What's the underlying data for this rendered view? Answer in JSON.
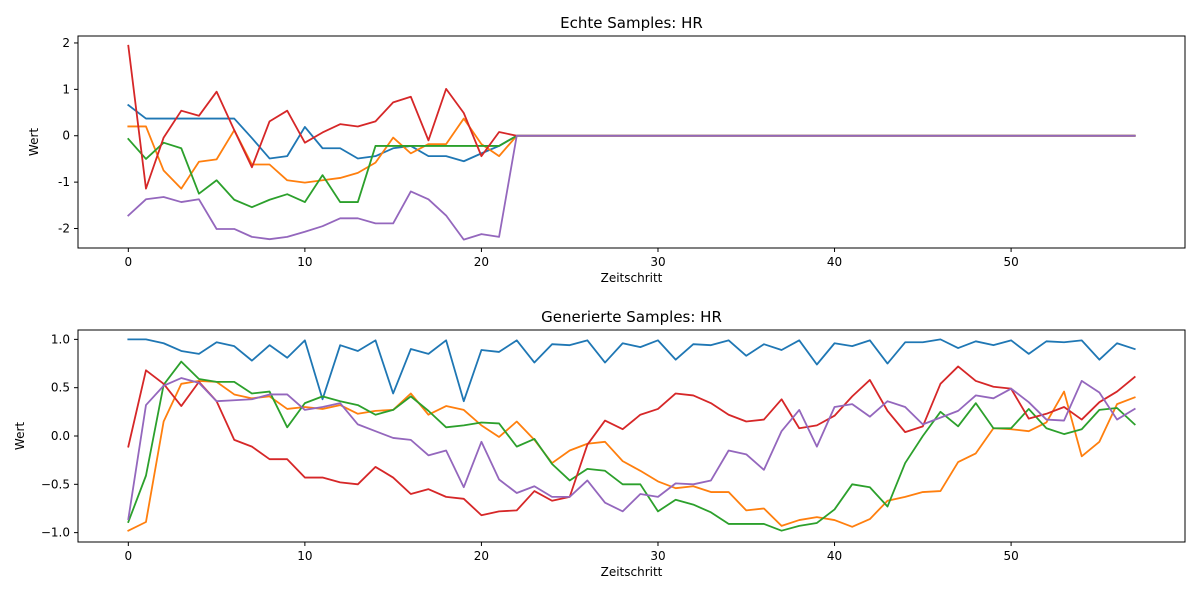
{
  "chart_data": [
    {
      "type": "line",
      "title": "Echte Samples: HR",
      "xlabel": "Zeitschritt",
      "ylabel": "Wert",
      "xlim": [
        -2.85,
        59.85
      ],
      "ylim": [
        -2.42,
        2.15
      ],
      "xticks": [
        0,
        10,
        20,
        30,
        40,
        50
      ],
      "yticks": [
        -2,
        -1,
        0,
        1,
        2
      ],
      "grid": false,
      "x": [
        0,
        1,
        2,
        3,
        4,
        5,
        6,
        7,
        8,
        9,
        10,
        11,
        12,
        13,
        14,
        15,
        16,
        17,
        18,
        19,
        20,
        21,
        22,
        23,
        24,
        25,
        26,
        27,
        28,
        29,
        30,
        31,
        32,
        33,
        34,
        35,
        36,
        37,
        38,
        39,
        40,
        41,
        42,
        43,
        44,
        45,
        46,
        47,
        48,
        49,
        50,
        51,
        52,
        53,
        54,
        55,
        56,
        57
      ],
      "series": [
        {
          "color": "#1f77b4",
          "values": [
            0.66,
            0.37,
            0.37,
            0.37,
            0.37,
            0.37,
            0.37,
            -0.05,
            -0.49,
            -0.44,
            0.19,
            -0.27,
            -0.27,
            -0.49,
            -0.44,
            -0.27,
            -0.22,
            -0.44,
            -0.44,
            -0.55,
            -0.38,
            -0.22,
            0,
            0,
            0,
            0,
            0,
            0,
            0,
            0,
            0,
            0,
            0,
            0,
            0,
            0,
            0,
            0,
            0,
            0,
            0,
            0,
            0,
            0,
            0,
            0,
            0,
            0,
            0,
            0,
            0,
            0,
            0,
            0,
            0,
            0,
            0,
            0
          ]
        },
        {
          "color": "#ff7f0e",
          "values": [
            0.2,
            0.2,
            -0.75,
            -1.14,
            -0.56,
            -0.51,
            0.12,
            -0.62,
            -0.62,
            -0.96,
            -1.01,
            -0.96,
            -0.91,
            -0.8,
            -0.58,
            -0.04,
            -0.38,
            -0.18,
            -0.18,
            0.37,
            -0.18,
            -0.44,
            0,
            0,
            0,
            0,
            0,
            0,
            0,
            0,
            0,
            0,
            0,
            0,
            0,
            0,
            0,
            0,
            0,
            0,
            0,
            0,
            0,
            0,
            0,
            0,
            0,
            0,
            0,
            0,
            0,
            0,
            0,
            0,
            0,
            0,
            0,
            0
          ]
        },
        {
          "color": "#2ca02c",
          "values": [
            -0.07,
            -0.5,
            -0.15,
            -0.27,
            -1.25,
            -0.96,
            -1.38,
            -1.54,
            -1.38,
            -1.26,
            -1.43,
            -0.85,
            -1.43,
            -1.43,
            -0.22,
            -0.22,
            -0.22,
            -0.22,
            -0.22,
            -0.22,
            -0.22,
            -0.22,
            0,
            0,
            0,
            0,
            0,
            0,
            0,
            0,
            0,
            0,
            0,
            0,
            0,
            0,
            0,
            0,
            0,
            0,
            0,
            0,
            0,
            0,
            0,
            0,
            0,
            0,
            0,
            0,
            0,
            0,
            0,
            0,
            0,
            0,
            0,
            0
          ]
        },
        {
          "color": "#d62728",
          "values": [
            1.94,
            -1.14,
            -0.04,
            0.54,
            0.43,
            0.95,
            0.12,
            -0.68,
            0.31,
            0.54,
            -0.15,
            0.07,
            0.25,
            0.2,
            0.31,
            0.72,
            0.84,
            -0.1,
            1.01,
            0.49,
            -0.44,
            0.08,
            0,
            0,
            0,
            0,
            0,
            0,
            0,
            0,
            0,
            0,
            0,
            0,
            0,
            0,
            0,
            0,
            0,
            0,
            0,
            0,
            0,
            0,
            0,
            0,
            0,
            0,
            0,
            0,
            0,
            0,
            0,
            0,
            0,
            0,
            0,
            0
          ]
        },
        {
          "color": "#9467bd",
          "values": [
            -1.72,
            -1.37,
            -1.32,
            -1.43,
            -1.37,
            -2.01,
            -2.01,
            -2.18,
            -2.23,
            -2.18,
            -2.07,
            -1.95,
            -1.78,
            -1.78,
            -1.89,
            -1.89,
            -1.2,
            -1.37,
            -1.72,
            -2.24,
            -2.12,
            -2.18,
            0,
            0,
            0,
            0,
            0,
            0,
            0,
            0,
            0,
            0,
            0,
            0,
            0,
            0,
            0,
            0,
            0,
            0,
            0,
            0,
            0,
            0,
            0,
            0,
            0,
            0,
            0,
            0,
            0,
            0,
            0,
            0,
            0,
            0,
            0,
            0
          ]
        }
      ]
    },
    {
      "type": "line",
      "title": "Generierte Samples: HR",
      "xlabel": "Zeitschritt",
      "ylabel": "Wert",
      "xlim": [
        -2.85,
        59.85
      ],
      "ylim": [
        -1.097,
        1.097
      ],
      "xticks": [
        0,
        10,
        20,
        30,
        40,
        50
      ],
      "yticks": [
        -1.0,
        -0.5,
        0.0,
        0.5,
        1.0
      ],
      "ytick_labels": [
        "−1.0",
        "−0.5",
        "0.0",
        "0.5",
        "1.0"
      ],
      "grid": false,
      "x": [
        0,
        1,
        2,
        3,
        4,
        5,
        6,
        7,
        8,
        9,
        10,
        11,
        12,
        13,
        14,
        15,
        16,
        17,
        18,
        19,
        20,
        21,
        22,
        23,
        24,
        25,
        26,
        27,
        28,
        29,
        30,
        31,
        32,
        33,
        34,
        35,
        36,
        37,
        38,
        39,
        40,
        41,
        42,
        43,
        44,
        45,
        46,
        47,
        48,
        49,
        50,
        51,
        52,
        53,
        54,
        55,
        56,
        57
      ],
      "series": [
        {
          "color": "#1f77b4",
          "values": [
            1.0,
            1.0,
            0.96,
            0.88,
            0.85,
            0.97,
            0.93,
            0.78,
            0.94,
            0.81,
            0.99,
            0.38,
            0.94,
            0.88,
            0.99,
            0.44,
            0.9,
            0.85,
            0.99,
            0.36,
            0.89,
            0.87,
            0.99,
            0.76,
            0.95,
            0.94,
            0.99,
            0.76,
            0.96,
            0.92,
            0.99,
            0.79,
            0.95,
            0.94,
            0.99,
            0.83,
            0.95,
            0.89,
            0.99,
            0.74,
            0.96,
            0.93,
            0.99,
            0.75,
            0.97,
            0.97,
            1.0,
            0.91,
            0.98,
            0.94,
            0.99,
            0.85,
            0.98,
            0.97,
            0.99,
            0.79,
            0.96,
            0.9
          ]
        },
        {
          "color": "#ff7f0e",
          "values": [
            -0.98,
            -0.89,
            0.15,
            0.54,
            0.57,
            0.56,
            0.43,
            0.39,
            0.41,
            0.28,
            0.3,
            0.28,
            0.32,
            0.23,
            0.26,
            0.27,
            0.44,
            0.22,
            0.31,
            0.27,
            0.11,
            -0.01,
            0.15,
            -0.04,
            -0.28,
            -0.15,
            -0.08,
            -0.06,
            -0.26,
            -0.36,
            -0.47,
            -0.54,
            -0.52,
            -0.58,
            -0.58,
            -0.77,
            -0.75,
            -0.93,
            -0.87,
            -0.84,
            -0.87,
            -0.94,
            -0.86,
            -0.67,
            -0.63,
            -0.58,
            -0.57,
            -0.27,
            -0.18,
            0.08,
            0.07,
            0.05,
            0.14,
            0.46,
            -0.21,
            -0.06,
            0.33,
            0.4
          ]
        },
        {
          "color": "#2ca02c",
          "values": [
            -0.89,
            -0.41,
            0.53,
            0.77,
            0.59,
            0.56,
            0.56,
            0.44,
            0.46,
            0.09,
            0.34,
            0.41,
            0.36,
            0.32,
            0.22,
            0.27,
            0.41,
            0.26,
            0.09,
            0.11,
            0.14,
            0.13,
            -0.11,
            -0.03,
            -0.29,
            -0.46,
            -0.34,
            -0.36,
            -0.5,
            -0.5,
            -0.78,
            -0.66,
            -0.71,
            -0.79,
            -0.91,
            -0.91,
            -0.91,
            -0.98,
            -0.93,
            -0.9,
            -0.76,
            -0.5,
            -0.53,
            -0.73,
            -0.28,
            -0.0,
            0.25,
            0.1,
            0.34,
            0.08,
            0.08,
            0.28,
            0.08,
            0.02,
            0.07,
            0.27,
            0.29,
            0.12
          ]
        },
        {
          "color": "#d62728",
          "values": [
            -0.11,
            0.68,
            0.54,
            0.31,
            0.56,
            0.36,
            -0.04,
            -0.11,
            -0.24,
            -0.24,
            -0.43,
            -0.43,
            -0.48,
            -0.5,
            -0.32,
            -0.43,
            -0.6,
            -0.55,
            -0.63,
            -0.65,
            -0.82,
            -0.78,
            -0.77,
            -0.57,
            -0.67,
            -0.63,
            -0.09,
            0.16,
            0.07,
            0.22,
            0.28,
            0.44,
            0.42,
            0.34,
            0.22,
            0.15,
            0.17,
            0.38,
            0.08,
            0.11,
            0.21,
            0.41,
            0.58,
            0.26,
            0.04,
            0.1,
            0.54,
            0.72,
            0.57,
            0.51,
            0.49,
            0.18,
            0.23,
            0.3,
            0.17,
            0.35,
            0.46,
            0.61
          ]
        },
        {
          "color": "#9467bd",
          "values": [
            -0.86,
            0.32,
            0.52,
            0.6,
            0.55,
            0.36,
            0.37,
            0.38,
            0.43,
            0.43,
            0.27,
            0.3,
            0.34,
            0.12,
            0.05,
            -0.02,
            -0.04,
            -0.2,
            -0.15,
            -0.53,
            -0.06,
            -0.45,
            -0.59,
            -0.52,
            -0.63,
            -0.63,
            -0.46,
            -0.69,
            -0.78,
            -0.6,
            -0.63,
            -0.49,
            -0.5,
            -0.46,
            -0.15,
            -0.19,
            -0.35,
            0.05,
            0.27,
            -0.11,
            0.3,
            0.33,
            0.2,
            0.36,
            0.3,
            0.12,
            0.19,
            0.26,
            0.42,
            0.39,
            0.49,
            0.35,
            0.17,
            0.16,
            0.57,
            0.45,
            0.17,
            0.28
          ]
        }
      ]
    }
  ]
}
